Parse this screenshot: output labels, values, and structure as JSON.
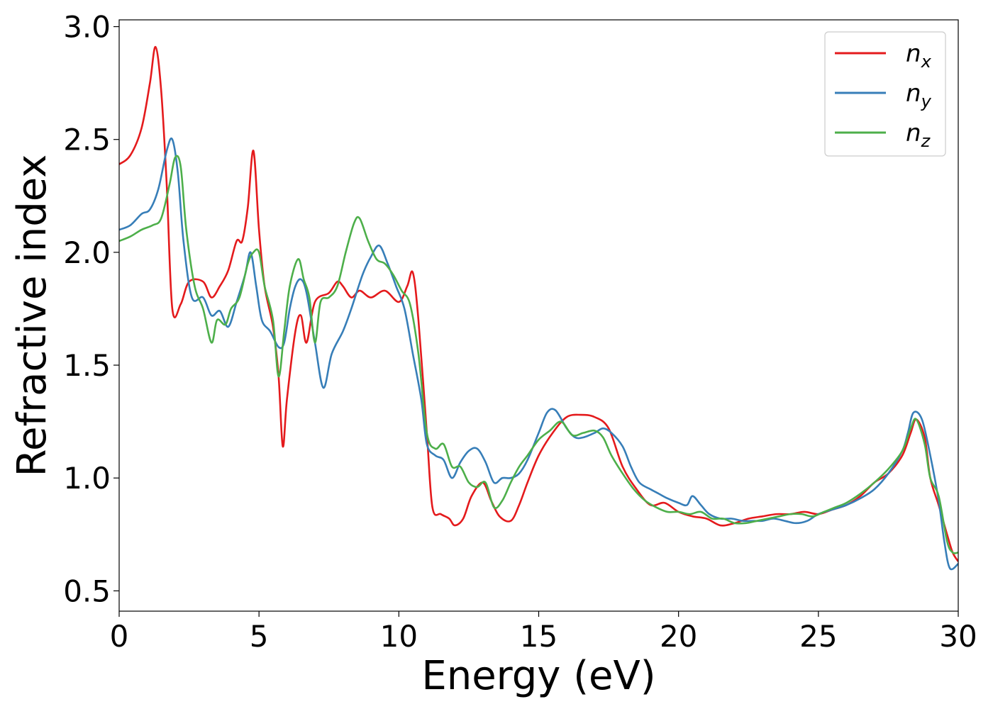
{
  "chart_data": {
    "type": "line",
    "xlabel": "Energy (eV)",
    "ylabel": "Refractive index",
    "xlim": [
      0,
      30
    ],
    "ylim": [
      0.41,
      3.03
    ],
    "xticks": [
      "0",
      "5",
      "10",
      "15",
      "20",
      "25",
      "30"
    ],
    "yticks": [
      "0.5",
      "1.0",
      "1.5",
      "2.0",
      "2.5",
      "3.0"
    ],
    "grid": false,
    "legend_position": "top-right",
    "series": [
      {
        "name": "n",
        "subscript": "x",
        "color": "#e41a1c",
        "x": [
          0,
          0.4,
          0.8,
          1.1,
          1.3,
          1.5,
          1.7,
          1.9,
          2.2,
          2.5,
          3.0,
          3.3,
          3.6,
          3.9,
          4.2,
          4.4,
          4.6,
          4.8,
          5.0,
          5.2,
          5.5,
          5.7,
          5.85,
          6.0,
          6.3,
          6.5,
          6.7,
          7.0,
          7.5,
          7.8,
          8.0,
          8.3,
          8.6,
          9.0,
          9.5,
          10.0,
          10.3,
          10.5,
          10.7,
          11.0,
          11.2,
          11.5,
          11.8,
          12.0,
          12.3,
          12.6,
          13.0,
          13.3,
          13.6,
          14.0,
          14.3,
          14.6,
          15.0,
          15.5,
          16.0,
          16.5,
          17.0,
          17.5,
          18.0,
          18.5,
          19.0,
          19.5,
          20.0,
          20.5,
          21.0,
          21.5,
          22.0,
          22.5,
          23.0,
          23.5,
          24.0,
          24.5,
          25.0,
          25.5,
          26.0,
          26.5,
          27.0,
          27.5,
          28.0,
          28.3,
          28.5,
          28.8,
          29.0,
          29.3,
          29.6,
          29.8,
          30.0
        ],
        "values": [
          2.39,
          2.43,
          2.55,
          2.75,
          2.91,
          2.72,
          2.3,
          1.75,
          1.77,
          1.87,
          1.87,
          1.8,
          1.85,
          1.92,
          2.05,
          2.05,
          2.2,
          2.45,
          2.1,
          1.85,
          1.67,
          1.45,
          1.14,
          1.35,
          1.65,
          1.72,
          1.6,
          1.78,
          1.82,
          1.87,
          1.85,
          1.8,
          1.83,
          1.8,
          1.83,
          1.78,
          1.85,
          1.91,
          1.7,
          1.2,
          0.87,
          0.84,
          0.82,
          0.79,
          0.82,
          0.92,
          0.98,
          0.9,
          0.83,
          0.81,
          0.88,
          0.98,
          1.1,
          1.2,
          1.27,
          1.28,
          1.27,
          1.22,
          1.05,
          0.95,
          0.88,
          0.89,
          0.85,
          0.83,
          0.82,
          0.79,
          0.8,
          0.82,
          0.83,
          0.84,
          0.84,
          0.85,
          0.84,
          0.86,
          0.88,
          0.92,
          0.98,
          1.02,
          1.1,
          1.2,
          1.26,
          1.18,
          1.0,
          0.88,
          0.75,
          0.67,
          0.63
        ]
      },
      {
        "name": "n",
        "subscript": "y",
        "color": "#377eb8",
        "x": [
          0,
          0.4,
          0.8,
          1.1,
          1.4,
          1.7,
          1.9,
          2.1,
          2.3,
          2.6,
          3.0,
          3.3,
          3.6,
          3.9,
          4.2,
          4.5,
          4.7,
          4.9,
          5.1,
          5.4,
          5.7,
          5.9,
          6.1,
          6.3,
          6.5,
          6.7,
          7.0,
          7.3,
          7.6,
          8.0,
          8.3,
          8.7,
          9.0,
          9.3,
          9.6,
          9.9,
          10.2,
          10.5,
          10.8,
          11.0,
          11.3,
          11.6,
          11.9,
          12.2,
          12.5,
          12.8,
          13.1,
          13.4,
          13.7,
          14.0,
          14.3,
          14.6,
          15.0,
          15.3,
          15.6,
          16.0,
          16.3,
          16.6,
          17.0,
          17.3,
          17.6,
          18.0,
          18.3,
          18.6,
          19.0,
          19.3,
          19.6,
          20.0,
          20.3,
          20.5,
          20.8,
          21.1,
          21.5,
          21.9,
          22.3,
          22.7,
          23.0,
          23.4,
          23.8,
          24.2,
          24.6,
          25.0,
          25.5,
          26.0,
          26.5,
          27.0,
          27.5,
          28.0,
          28.2,
          28.4,
          28.7,
          29.0,
          29.3,
          29.5,
          29.7,
          30.0
        ],
        "values": [
          2.1,
          2.12,
          2.17,
          2.19,
          2.28,
          2.45,
          2.5,
          2.35,
          2.05,
          1.8,
          1.8,
          1.72,
          1.74,
          1.67,
          1.78,
          1.9,
          2.0,
          1.85,
          1.7,
          1.65,
          1.58,
          1.6,
          1.75,
          1.85,
          1.88,
          1.82,
          1.6,
          1.4,
          1.55,
          1.65,
          1.75,
          1.9,
          1.98,
          2.03,
          1.95,
          1.85,
          1.75,
          1.55,
          1.35,
          1.15,
          1.1,
          1.08,
          1.0,
          1.07,
          1.12,
          1.13,
          1.07,
          0.98,
          1.0,
          1.0,
          1.02,
          1.08,
          1.2,
          1.29,
          1.3,
          1.22,
          1.18,
          1.18,
          1.2,
          1.22,
          1.2,
          1.14,
          1.05,
          0.98,
          0.95,
          0.93,
          0.91,
          0.89,
          0.88,
          0.92,
          0.88,
          0.84,
          0.82,
          0.82,
          0.81,
          0.81,
          0.81,
          0.82,
          0.81,
          0.8,
          0.81,
          0.84,
          0.86,
          0.88,
          0.91,
          0.95,
          1.02,
          1.12,
          1.2,
          1.29,
          1.26,
          1.1,
          0.9,
          0.72,
          0.6,
          0.62
        ]
      },
      {
        "name": "n",
        "subscript": "z",
        "color": "#4daf4a",
        "x": [
          0,
          0.4,
          0.8,
          1.2,
          1.5,
          1.8,
          2.0,
          2.2,
          2.4,
          2.7,
          3.0,
          3.3,
          3.5,
          3.8,
          4.0,
          4.3,
          4.6,
          4.8,
          5.0,
          5.2,
          5.5,
          5.7,
          5.9,
          6.1,
          6.4,
          6.6,
          6.8,
          7.0,
          7.2,
          7.5,
          7.8,
          8.1,
          8.4,
          8.6,
          8.9,
          9.2,
          9.5,
          9.8,
          10.1,
          10.4,
          10.7,
          11.0,
          11.3,
          11.6,
          11.9,
          12.2,
          12.5,
          12.8,
          13.1,
          13.4,
          13.7,
          14.0,
          14.3,
          14.6,
          15.0,
          15.4,
          15.8,
          16.2,
          16.6,
          17.0,
          17.3,
          17.6,
          18.0,
          18.4,
          18.8,
          19.2,
          19.6,
          20.0,
          20.4,
          20.8,
          21.2,
          21.6,
          22.0,
          22.4,
          22.8,
          23.2,
          23.6,
          24.0,
          24.4,
          24.8,
          25.2,
          25.6,
          26.0,
          26.5,
          27.0,
          27.5,
          28.0,
          28.3,
          28.5,
          28.8,
          29.0,
          29.3,
          29.6,
          29.8,
          30.0
        ],
        "values": [
          2.05,
          2.07,
          2.1,
          2.12,
          2.15,
          2.3,
          2.42,
          2.38,
          2.1,
          1.85,
          1.75,
          1.6,
          1.7,
          1.68,
          1.75,
          1.8,
          1.95,
          2.0,
          2.0,
          1.85,
          1.7,
          1.45,
          1.65,
          1.85,
          1.97,
          1.88,
          1.8,
          1.6,
          1.78,
          1.8,
          1.85,
          2.0,
          2.13,
          2.15,
          2.05,
          1.97,
          1.95,
          1.9,
          1.83,
          1.77,
          1.55,
          1.2,
          1.13,
          1.15,
          1.05,
          1.05,
          0.98,
          0.96,
          0.98,
          0.87,
          0.9,
          0.98,
          1.05,
          1.1,
          1.17,
          1.21,
          1.25,
          1.19,
          1.2,
          1.21,
          1.18,
          1.1,
          1.02,
          0.95,
          0.9,
          0.87,
          0.85,
          0.85,
          0.84,
          0.85,
          0.82,
          0.82,
          0.8,
          0.8,
          0.81,
          0.82,
          0.83,
          0.84,
          0.84,
          0.83,
          0.85,
          0.87,
          0.89,
          0.93,
          0.98,
          1.04,
          1.12,
          1.22,
          1.26,
          1.15,
          1.0,
          0.92,
          0.72,
          0.67,
          0.67
        ]
      }
    ]
  }
}
